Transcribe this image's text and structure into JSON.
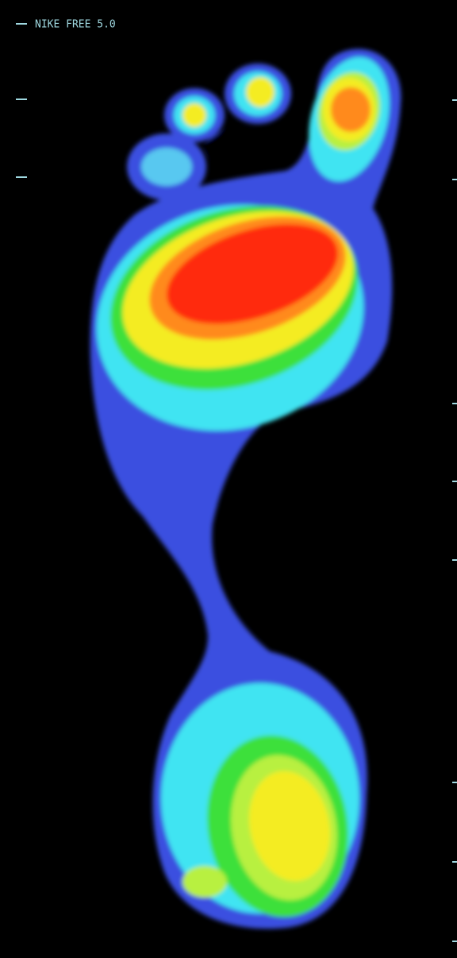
{
  "label": "NIKE FREE 5.0"
}
